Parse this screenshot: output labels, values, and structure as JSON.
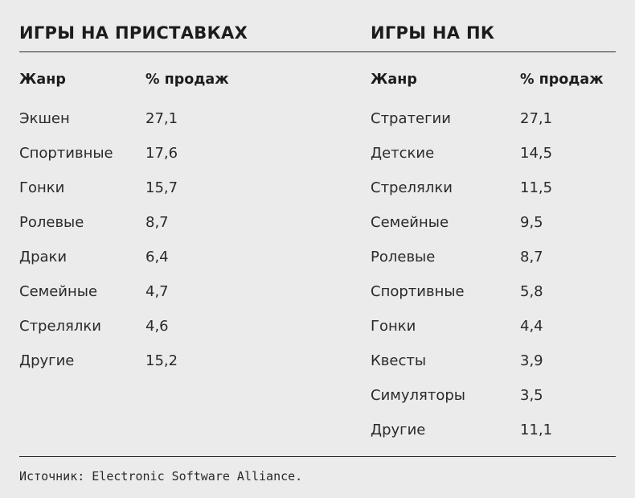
{
  "consoles": {
    "title": "ИГРЫ НА ПРИСТАВКАХ",
    "headers": {
      "genre": "Жанр",
      "share": "% продаж"
    },
    "rows": [
      {
        "genre": "Экшен",
        "share": "27,1"
      },
      {
        "genre": "Спортивные",
        "share": "17,6"
      },
      {
        "genre": "Гонки",
        "share": "15,7"
      },
      {
        "genre": "Ролевые",
        "share": "8,7"
      },
      {
        "genre": "Драки",
        "share": "6,4"
      },
      {
        "genre": "Семейные",
        "share": "4,7"
      },
      {
        "genre": "Стрелялки",
        "share": "4,6"
      },
      {
        "genre": "Другие",
        "share": "15,2"
      }
    ]
  },
  "pc": {
    "title": "ИГРЫ НА ПК",
    "headers": {
      "genre": "Жанр",
      "share": "% продаж"
    },
    "rows": [
      {
        "genre": "Стратегии",
        "share": "27,1"
      },
      {
        "genre": "Детские",
        "share": "14,5"
      },
      {
        "genre": "Стрелялки",
        "share": "11,5"
      },
      {
        "genre": "Семейные",
        "share": "9,5"
      },
      {
        "genre": "Ролевые",
        "share": "8,7"
      },
      {
        "genre": "Спортивные",
        "share": "5,8"
      },
      {
        "genre": "Гонки",
        "share": "4,4"
      },
      {
        "genre": "Квесты",
        "share": "3,9"
      },
      {
        "genre": "Симуляторы",
        "share": "3,5"
      },
      {
        "genre": "Другие",
        "share": "11,1"
      }
    ]
  },
  "source": "Источник: Electronic Software Alliance."
}
